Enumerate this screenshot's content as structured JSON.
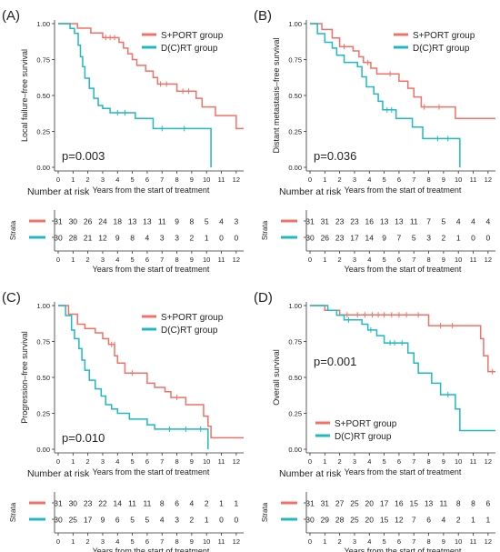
{
  "colors": {
    "s_port": "#f07167",
    "dcrt": "#1fb8c3",
    "axis": "#333333",
    "text": "#222222"
  },
  "common": {
    "xlabel": "Years from the start of treatment",
    "risk_title": "Number at risk",
    "strata_label": "Strata"
  },
  "chart_data": [
    {
      "panel": "(A)",
      "type": "line",
      "ylabel": "Local failure–free survival",
      "pvalue": "p=0.003",
      "legend_position": "top-right",
      "xlim": [
        0,
        12.5
      ],
      "ylim": [
        0,
        1
      ],
      "x_ticks": [
        "0",
        "1",
        "2",
        "3",
        "4",
        "5",
        "6",
        "7",
        "8",
        "9",
        "10",
        "11",
        "12"
      ],
      "y_ticks": [
        "0.00",
        "0.25",
        "0.50",
        "0.75",
        "1.00"
      ],
      "series": [
        {
          "name": "S+PORT group",
          "color": "s_port",
          "steps": [
            [
              0,
              1
            ],
            [
              1.3,
              0.968
            ],
            [
              2.2,
              0.935
            ],
            [
              3.0,
              0.903
            ],
            [
              4.1,
              0.87
            ],
            [
              4.4,
              0.83
            ],
            [
              4.7,
              0.79
            ],
            [
              5.0,
              0.75
            ],
            [
              5.3,
              0.71
            ],
            [
              5.9,
              0.67
            ],
            [
              6.4,
              0.625
            ],
            [
              6.7,
              0.58
            ],
            [
              8.0,
              0.53
            ],
            [
              9.3,
              0.48
            ],
            [
              9.7,
              0.42
            ],
            [
              10.6,
              0.36
            ],
            [
              12.0,
              0.27
            ],
            [
              12.5,
              0.27
            ]
          ],
          "censors": [
            [
              3.2,
              0.903
            ],
            [
              3.5,
              0.903
            ],
            [
              3.8,
              0.903
            ],
            [
              6.9,
              0.58
            ],
            [
              7.3,
              0.58
            ],
            [
              8.4,
              0.53
            ],
            [
              8.8,
              0.53
            ]
          ]
        },
        {
          "name": "D(C)RT group",
          "color": "dcrt",
          "steps": [
            [
              0,
              1
            ],
            [
              0.8,
              0.967
            ],
            [
              1.1,
              0.933
            ],
            [
              1.35,
              0.85
            ],
            [
              1.5,
              0.77
            ],
            [
              1.65,
              0.7
            ],
            [
              1.8,
              0.62
            ],
            [
              2.1,
              0.55
            ],
            [
              2.4,
              0.48
            ],
            [
              2.7,
              0.43
            ],
            [
              3.0,
              0.41
            ],
            [
              3.5,
              0.38
            ],
            [
              5.2,
              0.34
            ],
            [
              6.4,
              0.27
            ],
            [
              10.3,
              0.0
            ]
          ],
          "censors": [
            [
              4.0,
              0.38
            ],
            [
              4.5,
              0.38
            ],
            [
              7.0,
              0.27
            ],
            [
              8.5,
              0.27
            ]
          ]
        }
      ],
      "risk": {
        "s_port": [
          "31",
          "30",
          "26",
          "24",
          "18",
          "13",
          "13",
          "11",
          "9",
          "8",
          "5",
          "4",
          "3"
        ],
        "dcrt": [
          "30",
          "28",
          "21",
          "12",
          "9",
          "8",
          "4",
          "3",
          "3",
          "2",
          "1",
          "0",
          "0"
        ]
      }
    },
    {
      "panel": "(B)",
      "type": "line",
      "ylabel": "Distant metastasis–free survival",
      "pvalue": "p=0.036",
      "legend_position": "top-right",
      "xlim": [
        0,
        12.5
      ],
      "ylim": [
        0,
        1
      ],
      "x_ticks": [
        "0",
        "1",
        "2",
        "3",
        "4",
        "5",
        "6",
        "7",
        "8",
        "9",
        "10",
        "11",
        "12"
      ],
      "y_ticks": [
        "0.00",
        "0.25",
        "0.50",
        "0.75",
        "1.00"
      ],
      "series": [
        {
          "name": "S+PORT group",
          "color": "s_port",
          "steps": [
            [
              0,
              1
            ],
            [
              0.8,
              0.96
            ],
            [
              1.5,
              0.9
            ],
            [
              2.0,
              0.84
            ],
            [
              2.9,
              0.81
            ],
            [
              3.3,
              0.77
            ],
            [
              3.6,
              0.73
            ],
            [
              4.1,
              0.69
            ],
            [
              4.5,
              0.65
            ],
            [
              6.0,
              0.6
            ],
            [
              6.6,
              0.55
            ],
            [
              7.0,
              0.49
            ],
            [
              7.5,
              0.42
            ],
            [
              9.8,
              0.34
            ],
            [
              12.5,
              0.34
            ]
          ],
          "censors": [
            [
              2.3,
              0.84
            ],
            [
              3.9,
              0.73
            ],
            [
              5.4,
              0.65
            ],
            [
              7.7,
              0.42
            ],
            [
              8.7,
              0.42
            ]
          ]
        },
        {
          "name": "D(C)RT group",
          "color": "dcrt",
          "steps": [
            [
              0,
              1
            ],
            [
              0.5,
              0.93
            ],
            [
              1.0,
              0.87
            ],
            [
              1.5,
              0.83
            ],
            [
              1.8,
              0.78
            ],
            [
              2.3,
              0.73
            ],
            [
              3.2,
              0.7
            ],
            [
              3.5,
              0.63
            ],
            [
              3.8,
              0.56
            ],
            [
              4.3,
              0.51
            ],
            [
              4.6,
              0.46
            ],
            [
              4.9,
              0.4
            ],
            [
              5.8,
              0.34
            ],
            [
              6.9,
              0.28
            ],
            [
              7.6,
              0.2
            ],
            [
              10.1,
              0.0
            ]
          ],
          "censors": [
            [
              5.2,
              0.4
            ],
            [
              5.5,
              0.4
            ],
            [
              8.6,
              0.2
            ],
            [
              9.3,
              0.2
            ]
          ]
        }
      ],
      "risk": {
        "s_port": [
          "31",
          "31",
          "23",
          "23",
          "16",
          "13",
          "13",
          "11",
          "7",
          "5",
          "4",
          "4",
          "4"
        ],
        "dcrt": [
          "30",
          "26",
          "23",
          "17",
          "14",
          "9",
          "7",
          "5",
          "3",
          "2",
          "1",
          "0",
          "0"
        ]
      }
    },
    {
      "panel": "(C)",
      "type": "line",
      "ylabel": "Progression–free survival",
      "pvalue": "p=0.010",
      "legend_position": "top-right",
      "xlim": [
        0,
        12.5
      ],
      "ylim": [
        0,
        1
      ],
      "x_ticks": [
        "0",
        "1",
        "2",
        "3",
        "4",
        "5",
        "6",
        "7",
        "8",
        "9",
        "10",
        "11",
        "12"
      ],
      "y_ticks": [
        "0.00",
        "0.25",
        "0.50",
        "0.75",
        "1.00"
      ],
      "series": [
        {
          "name": "S+PORT group",
          "color": "s_port",
          "steps": [
            [
              0,
              1
            ],
            [
              0.7,
              0.94
            ],
            [
              1.3,
              0.87
            ],
            [
              1.8,
              0.84
            ],
            [
              2.5,
              0.81
            ],
            [
              3.0,
              0.77
            ],
            [
              3.4,
              0.73
            ],
            [
              3.8,
              0.65
            ],
            [
              4.0,
              0.6
            ],
            [
              4.5,
              0.53
            ],
            [
              6.0,
              0.46
            ],
            [
              6.5,
              0.43
            ],
            [
              7.2,
              0.4
            ],
            [
              7.6,
              0.36
            ],
            [
              8.6,
              0.31
            ],
            [
              9.8,
              0.23
            ],
            [
              10.1,
              0.16
            ],
            [
              10.3,
              0.08
            ],
            [
              12.5,
              0.08
            ]
          ],
          "censors": [
            [
              3.6,
              0.73
            ],
            [
              3.8,
              0.73
            ],
            [
              5.0,
              0.53
            ],
            [
              8.0,
              0.36
            ]
          ]
        },
        {
          "name": "D(C)RT group",
          "color": "dcrt",
          "steps": [
            [
              0,
              1
            ],
            [
              0.5,
              0.93
            ],
            [
              0.9,
              0.83
            ],
            [
              1.1,
              0.77
            ],
            [
              1.4,
              0.7
            ],
            [
              1.6,
              0.62
            ],
            [
              1.8,
              0.55
            ],
            [
              2.1,
              0.48
            ],
            [
              2.5,
              0.42
            ],
            [
              2.9,
              0.37
            ],
            [
              3.2,
              0.31
            ],
            [
              3.6,
              0.28
            ],
            [
              4.0,
              0.25
            ],
            [
              4.8,
              0.21
            ],
            [
              6.0,
              0.17
            ],
            [
              6.5,
              0.14
            ],
            [
              10.1,
              0.0
            ]
          ],
          "censors": [
            [
              7.5,
              0.14
            ],
            [
              8.6,
              0.14
            ],
            [
              9.6,
              0.14
            ]
          ]
        }
      ],
      "risk": {
        "s_port": [
          "31",
          "30",
          "23",
          "22",
          "14",
          "11",
          "11",
          "8",
          "6",
          "4",
          "2",
          "1",
          "1"
        ],
        "dcrt": [
          "30",
          "25",
          "17",
          "9",
          "6",
          "5",
          "5",
          "4",
          "3",
          "2",
          "1",
          "0",
          "0"
        ]
      }
    },
    {
      "panel": "(D)",
      "type": "line",
      "ylabel": "Overall survival",
      "pvalue": "p=0.001",
      "legend_position": "bottom-left",
      "xlim": [
        0,
        12.5
      ],
      "ylim": [
        0,
        1
      ],
      "x_ticks": [
        "0",
        "1",
        "2",
        "3",
        "4",
        "5",
        "6",
        "7",
        "8",
        "9",
        "10",
        "11",
        "12"
      ],
      "y_ticks": [
        "0.00",
        "0.25",
        "0.50",
        "0.75",
        "1.00"
      ],
      "series": [
        {
          "name": "S+PORT group",
          "color": "s_port",
          "steps": [
            [
              0,
              1
            ],
            [
              1.0,
              0.967
            ],
            [
              2.0,
              0.935
            ],
            [
              8.0,
              0.86
            ],
            [
              11.5,
              0.77
            ],
            [
              11.7,
              0.65
            ],
            [
              12.0,
              0.54
            ],
            [
              12.5,
              0.54
            ]
          ],
          "censors": [
            [
              2.5,
              0.935
            ],
            [
              3.2,
              0.935
            ],
            [
              3.7,
              0.935
            ],
            [
              4.2,
              0.935
            ],
            [
              4.6,
              0.935
            ],
            [
              5.0,
              0.935
            ],
            [
              5.5,
              0.935
            ],
            [
              6.0,
              0.935
            ],
            [
              6.5,
              0.935
            ],
            [
              7.3,
              0.935
            ],
            [
              8.8,
              0.86
            ],
            [
              9.6,
              0.86
            ],
            [
              12.3,
              0.54
            ]
          ]
        },
        {
          "name": "D(C)RT group",
          "color": "dcrt",
          "steps": [
            [
              0,
              1
            ],
            [
              1.2,
              0.967
            ],
            [
              1.8,
              0.933
            ],
            [
              2.3,
              0.9
            ],
            [
              3.5,
              0.87
            ],
            [
              3.9,
              0.83
            ],
            [
              4.5,
              0.79
            ],
            [
              5.0,
              0.74
            ],
            [
              6.6,
              0.67
            ],
            [
              7.0,
              0.6
            ],
            [
              7.3,
              0.53
            ],
            [
              8.2,
              0.46
            ],
            [
              8.8,
              0.38
            ],
            [
              9.8,
              0.28
            ],
            [
              10.1,
              0.13
            ],
            [
              12.5,
              0.13
            ]
          ],
          "censors": [
            [
              2.6,
              0.9
            ],
            [
              4.1,
              0.83
            ],
            [
              5.4,
              0.74
            ],
            [
              5.7,
              0.74
            ],
            [
              6.2,
              0.74
            ],
            [
              9.3,
              0.38
            ]
          ]
        }
      ],
      "risk": {
        "s_port": [
          "31",
          "31",
          "27",
          "25",
          "20",
          "17",
          "16",
          "15",
          "13",
          "11",
          "8",
          "8",
          "6"
        ],
        "dcrt": [
          "30",
          "29",
          "28",
          "25",
          "20",
          "15",
          "12",
          "7",
          "6",
          "4",
          "2",
          "1",
          "1"
        ]
      }
    }
  ]
}
